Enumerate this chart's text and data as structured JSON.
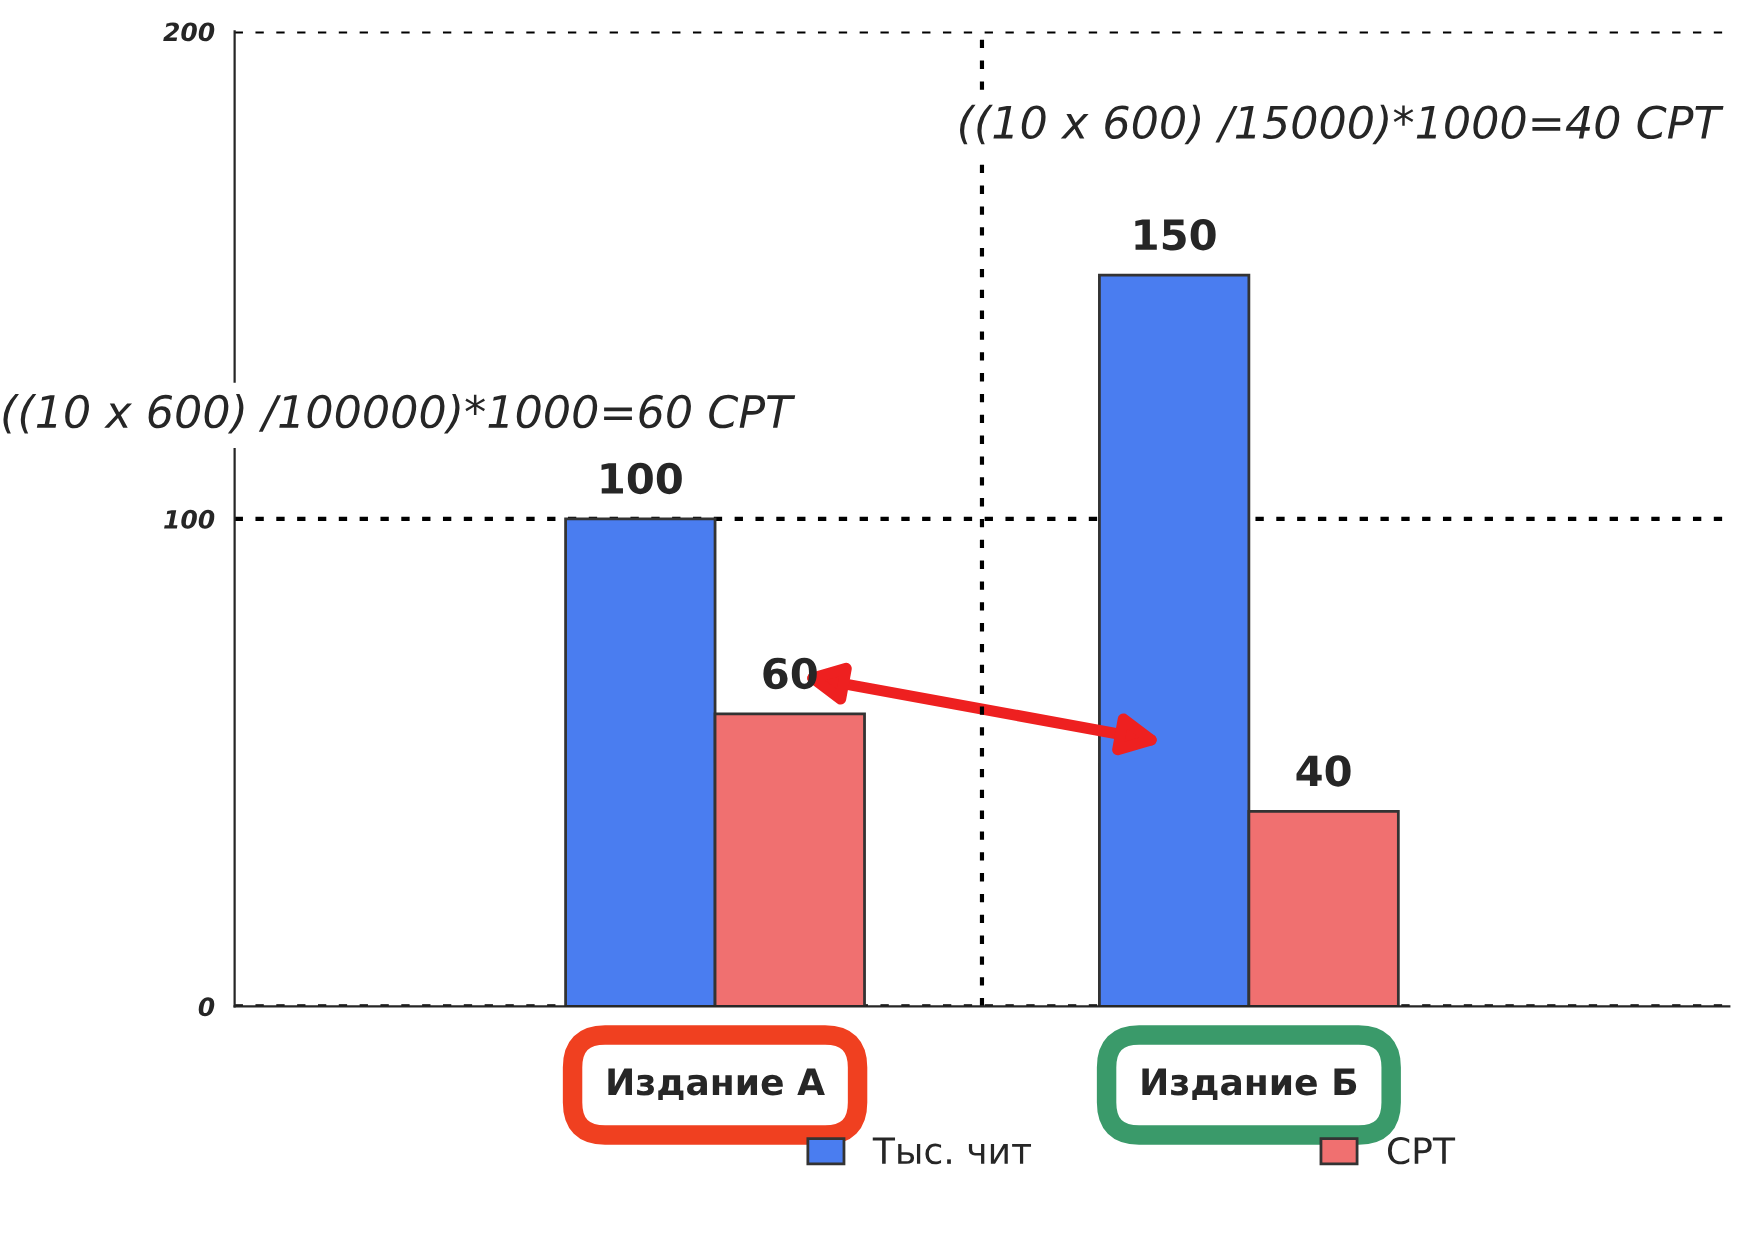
{
  "chart_data": {
    "type": "bar",
    "categories": [
      "Издание А",
      "Издание Б"
    ],
    "series": [
      {
        "name": "Тыс. чит",
        "color": "#4a7df0",
        "values": [
          100,
          150
        ]
      },
      {
        "name": "СРТ",
        "color": "#f07070",
        "values": [
          60,
          40
        ]
      }
    ],
    "ylim": [
      0,
      200
    ],
    "yticks": [
      0,
      100,
      200
    ],
    "grid": "y",
    "data_labels": true,
    "legend": "bottom",
    "annotations": [
      "((10 x 600) /100000)*1000=60 СРТ",
      "((10 x 600) /15000)*1000=40 СРТ"
    ]
  }
}
